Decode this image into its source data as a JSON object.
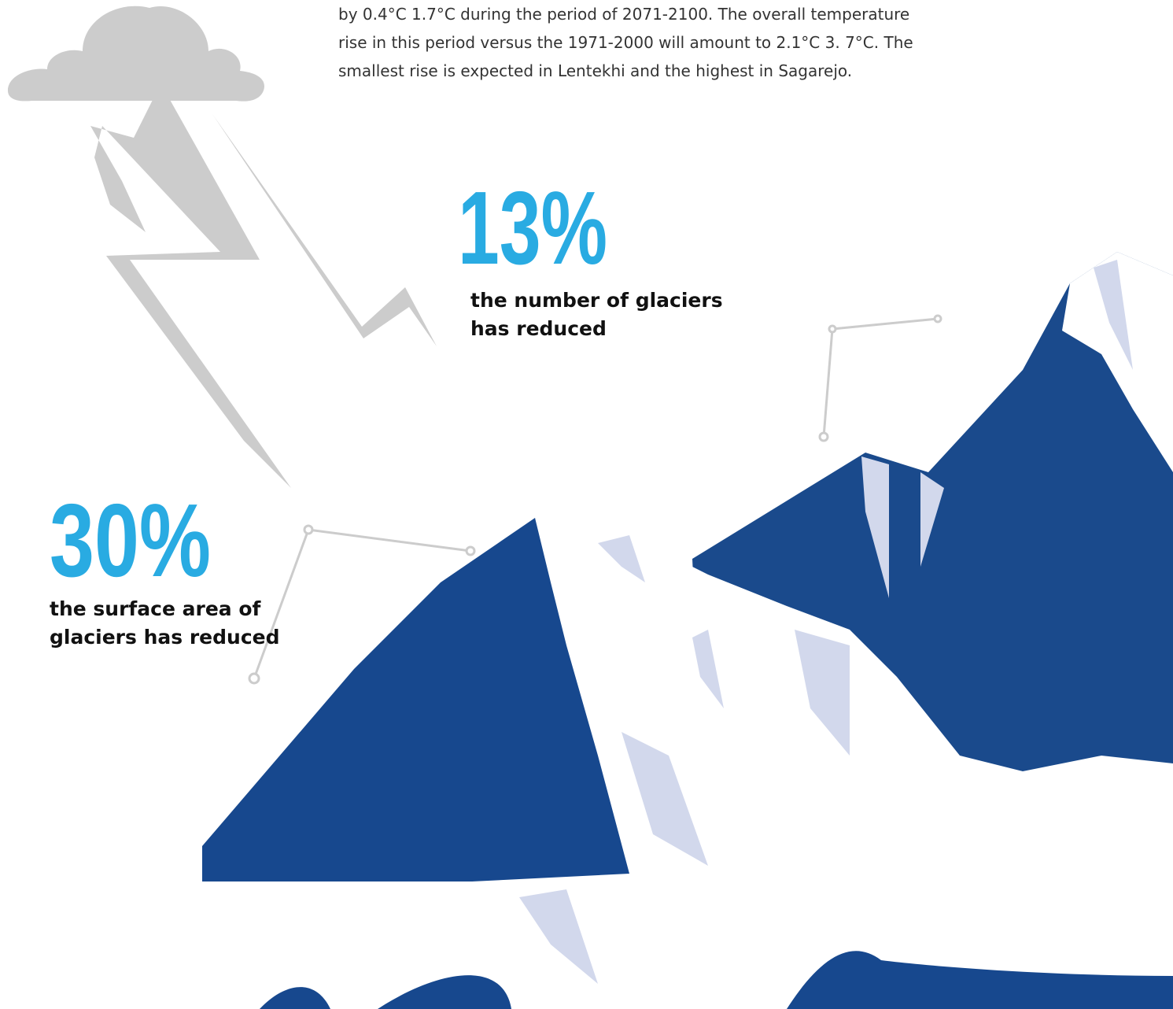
{
  "paragraph": {
    "lines": [
      "by 0.4°C 1.7°C during the period of 2071-2100. The overall temperature",
      "rise in this period versus the 1971-2000 will amount to 2.1°C 3. 7°C. The",
      "smallest rise is expected in Lentekhi and the highest in Sagarejo."
    ]
  },
  "stats": [
    {
      "value": "13%",
      "label": [
        "the number of glaciers",
        "has reduced"
      ]
    },
    {
      "value": "30%",
      "label": [
        "the surface area of",
        "glaciers has reduced"
      ]
    }
  ]
}
